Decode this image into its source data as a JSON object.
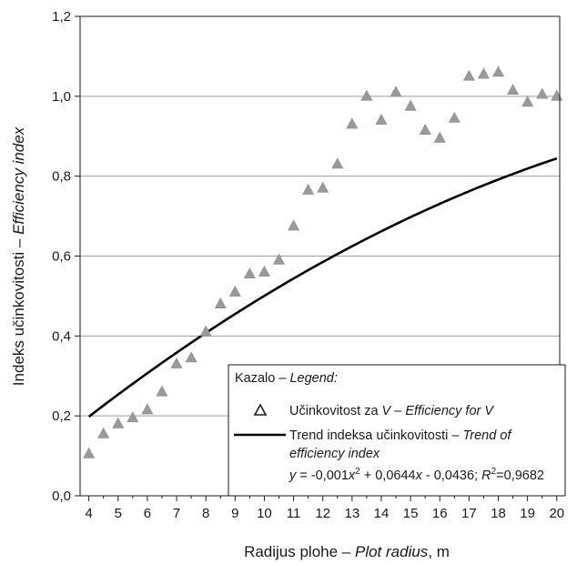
{
  "chart_data": {
    "type": "scatter",
    "xlabel": {
      "main": "Radijus plohe – ",
      "italic": "Plot radius",
      "suffix": ", m"
    },
    "ylabel": {
      "main": "Indeks učinkovitosti – ",
      "italic": "Efficiency index"
    },
    "xlim": [
      3.7,
      20.1
    ],
    "ylim": [
      0,
      1.2
    ],
    "x_ticks": [
      "4",
      "5",
      "6",
      "7",
      "8",
      "9",
      "10",
      "11",
      "12",
      "13",
      "14",
      "15",
      "16",
      "17",
      "18",
      "19",
      "20"
    ],
    "y_ticks": [
      "0,0",
      "0,2",
      "0,4",
      "0,6",
      "0,8",
      "1,0",
      "1,2"
    ],
    "grid": true,
    "series": [
      {
        "name": "Učinkovitost za V – Efficiency for V",
        "marker": "triangle",
        "color": "#9a9a9a",
        "x": [
          4,
          4.5,
          5,
          5.5,
          6,
          6.5,
          7,
          7.5,
          8,
          8.5,
          9,
          9.5,
          10,
          10.5,
          11,
          11.5,
          12,
          12.5,
          13,
          13.5,
          14,
          14.5,
          15,
          15.5,
          16,
          16.5,
          17,
          17.5,
          18,
          18.5,
          19,
          19.5,
          20
        ],
        "y": [
          0.105,
          0.155,
          0.18,
          0.195,
          0.215,
          0.26,
          0.33,
          0.345,
          0.41,
          0.48,
          0.51,
          0.555,
          0.56,
          0.59,
          0.675,
          0.765,
          0.77,
          0.83,
          0.93,
          1.0,
          0.94,
          1.01,
          0.975,
          0.915,
          0.895,
          0.945,
          1.05,
          1.055,
          1.06,
          1.015,
          0.985,
          1.005,
          1.0
        ]
      },
      {
        "name": "Trend indeksa učinkovitosti – Trend of efficiency index",
        "type": "line",
        "color": "#000000",
        "equation_coefficients": [
          -0.001,
          0.0644,
          -0.0436
        ],
        "x_range": [
          4,
          20
        ]
      }
    ],
    "legend": {
      "title_main": "Kazalo – ",
      "title_italic": "Legend:",
      "item1_main": "Učinkovitost za ",
      "item1_v": "V",
      "item1_sep": " – ",
      "item1_italic": "Efficiency for V",
      "item2_main": "Trend indeksa učinkovitosti – ",
      "item2_italic": "Trend of",
      "item2_line2": "efficiency index",
      "equation": "y = -0,001x2 + 0,0644x - 0,0436; R2=0,9682",
      "placement": "bottom-right"
    },
    "colors": {
      "marker": "#9a9a9a",
      "trend": "#000000",
      "grid": "#9c9c9c"
    }
  }
}
